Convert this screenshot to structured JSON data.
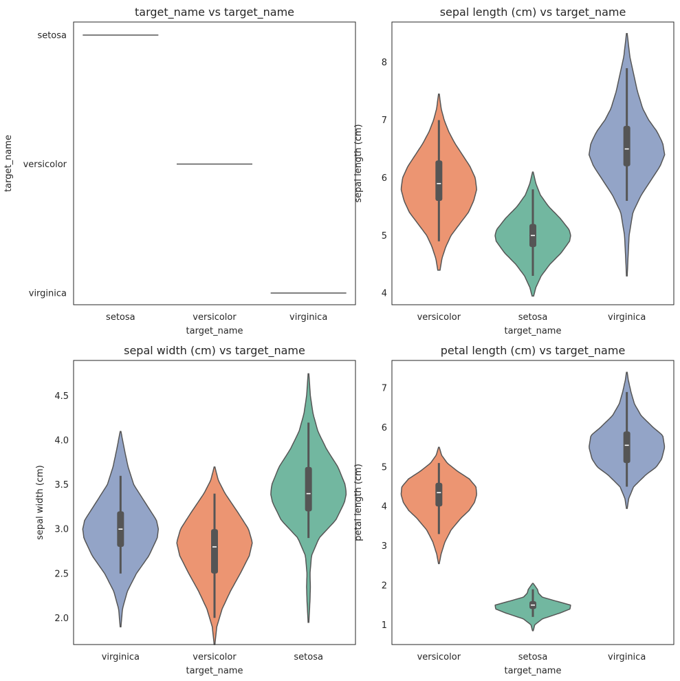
{
  "figure": {
    "colors": {
      "setosa": "#72b7a0",
      "versicolor": "#ec9572",
      "virginica": "#93a4c7",
      "edge": "#555555"
    }
  },
  "chart_data": [
    {
      "type": "line",
      "title": "target_name vs target_name",
      "xlabel": "target_name",
      "ylabel": "target_name",
      "categories": [
        "setosa",
        "versicolor",
        "virginica"
      ],
      "y_categories": [
        "setosa",
        "versicolor",
        "virginica"
      ],
      "points": [
        {
          "x": "setosa",
          "y": "setosa"
        },
        {
          "x": "versicolor",
          "y": "versicolor"
        },
        {
          "x": "virginica",
          "y": "virginica"
        }
      ]
    },
    {
      "type": "violin",
      "title": "sepal length (cm) vs target_name",
      "xlabel": "target_name",
      "ylabel": "sepal length (cm)",
      "ylim": [
        3.8,
        8.7
      ],
      "yticks": [
        4,
        5,
        6,
        7,
        8
      ],
      "categories": [
        "versicolor",
        "setosa",
        "virginica"
      ],
      "series": [
        {
          "name": "versicolor",
          "min": 4.9,
          "q1": 5.6,
          "median": 5.9,
          "q3": 6.3,
          "max": 7.0,
          "kde_min": 4.4,
          "kde_max": 7.45,
          "density": [
            [
              4.4,
              0.03
            ],
            [
              4.6,
              0.08
            ],
            [
              4.8,
              0.18
            ],
            [
              5.0,
              0.32
            ],
            [
              5.2,
              0.55
            ],
            [
              5.4,
              0.78
            ],
            [
              5.6,
              0.92
            ],
            [
              5.8,
              1.0
            ],
            [
              6.0,
              0.96
            ],
            [
              6.2,
              0.82
            ],
            [
              6.4,
              0.62
            ],
            [
              6.6,
              0.42
            ],
            [
              6.8,
              0.26
            ],
            [
              7.0,
              0.14
            ],
            [
              7.2,
              0.06
            ],
            [
              7.45,
              0.01
            ]
          ]
        },
        {
          "name": "setosa",
          "min": 4.3,
          "q1": 4.8,
          "median": 5.0,
          "q3": 5.2,
          "max": 5.8,
          "kde_min": 3.95,
          "kde_max": 6.1,
          "density": [
            [
              3.95,
              0.02
            ],
            [
              4.1,
              0.08
            ],
            [
              4.3,
              0.22
            ],
            [
              4.5,
              0.45
            ],
            [
              4.7,
              0.75
            ],
            [
              4.9,
              0.97
            ],
            [
              5.0,
              1.0
            ],
            [
              5.1,
              0.96
            ],
            [
              5.3,
              0.72
            ],
            [
              5.5,
              0.42
            ],
            [
              5.7,
              0.2
            ],
            [
              5.9,
              0.08
            ],
            [
              6.1,
              0.01
            ]
          ]
        },
        {
          "name": "virginica",
          "min": 5.6,
          "q1": 6.2,
          "median": 6.5,
          "q3": 6.9,
          "max": 7.9,
          "kde_min": 4.3,
          "kde_max": 8.5,
          "density": [
            [
              4.3,
              0.01
            ],
            [
              4.6,
              0.03
            ],
            [
              5.0,
              0.06
            ],
            [
              5.4,
              0.16
            ],
            [
              5.7,
              0.38
            ],
            [
              6.0,
              0.68
            ],
            [
              6.2,
              0.88
            ],
            [
              6.4,
              1.0
            ],
            [
              6.6,
              0.95
            ],
            [
              6.8,
              0.8
            ],
            [
              7.0,
              0.58
            ],
            [
              7.2,
              0.42
            ],
            [
              7.5,
              0.28
            ],
            [
              7.8,
              0.18
            ],
            [
              8.1,
              0.08
            ],
            [
              8.5,
              0.01
            ]
          ]
        }
      ]
    },
    {
      "type": "violin",
      "title": "sepal width (cm) vs target_name",
      "xlabel": "target_name",
      "ylabel": "sepal width (cm)",
      "ylim": [
        1.7,
        4.9
      ],
      "yticks": [
        "2.0",
        "2.5",
        "3.0",
        "3.5",
        "4.0",
        "4.5"
      ],
      "categories": [
        "virginica",
        "versicolor",
        "setosa"
      ],
      "series": [
        {
          "name": "virginica",
          "min": 2.5,
          "q1": 2.8,
          "median": 3.0,
          "q3": 3.2,
          "max": 3.6,
          "kde_min": 1.9,
          "kde_max": 4.1,
          "density": [
            [
              1.9,
              0.01
            ],
            [
              2.1,
              0.05
            ],
            [
              2.3,
              0.18
            ],
            [
              2.5,
              0.42
            ],
            [
              2.7,
              0.75
            ],
            [
              2.9,
              0.97
            ],
            [
              3.0,
              1.0
            ],
            [
              3.1,
              0.95
            ],
            [
              3.3,
              0.65
            ],
            [
              3.5,
              0.35
            ],
            [
              3.7,
              0.2
            ],
            [
              3.9,
              0.1
            ],
            [
              4.1,
              0.01
            ]
          ]
        },
        {
          "name": "versicolor",
          "min": 2.0,
          "q1": 2.5,
          "median": 2.8,
          "q3": 3.0,
          "max": 3.4,
          "kde_min": 1.7,
          "kde_max": 3.7,
          "density": [
            [
              1.7,
              0.01
            ],
            [
              1.9,
              0.06
            ],
            [
              2.1,
              0.2
            ],
            [
              2.3,
              0.42
            ],
            [
              2.5,
              0.68
            ],
            [
              2.7,
              0.92
            ],
            [
              2.85,
              1.0
            ],
            [
              3.0,
              0.9
            ],
            [
              3.2,
              0.6
            ],
            [
              3.4,
              0.28
            ],
            [
              3.55,
              0.1
            ],
            [
              3.7,
              0.01
            ]
          ]
        },
        {
          "name": "setosa",
          "min": 2.9,
          "q1": 3.2,
          "median": 3.4,
          "q3": 3.7,
          "max": 4.2,
          "kde_min": 1.95,
          "kde_max": 4.75,
          "density": [
            [
              1.95,
              0.01
            ],
            [
              2.2,
              0.04
            ],
            [
              2.35,
              0.05
            ],
            [
              2.5,
              0.04
            ],
            [
              2.7,
              0.08
            ],
            [
              2.9,
              0.28
            ],
            [
              3.1,
              0.72
            ],
            [
              3.3,
              0.95
            ],
            [
              3.4,
              1.0
            ],
            [
              3.5,
              0.97
            ],
            [
              3.7,
              0.78
            ],
            [
              3.9,
              0.48
            ],
            [
              4.1,
              0.25
            ],
            [
              4.3,
              0.12
            ],
            [
              4.5,
              0.05
            ],
            [
              4.75,
              0.01
            ]
          ]
        }
      ]
    },
    {
      "type": "violin",
      "title": "petal length (cm) vs target_name",
      "xlabel": "target_name",
      "ylabel": "petal length (cm)",
      "ylim": [
        0.5,
        7.7
      ],
      "yticks": [
        1,
        2,
        3,
        4,
        5,
        6,
        7
      ],
      "categories": [
        "versicolor",
        "setosa",
        "virginica"
      ],
      "series": [
        {
          "name": "versicolor",
          "min": 3.3,
          "q1": 4.0,
          "median": 4.35,
          "q3": 4.6,
          "max": 5.1,
          "kde_min": 2.55,
          "kde_max": 5.5,
          "density": [
            [
              2.55,
              0.01
            ],
            [
              2.8,
              0.06
            ],
            [
              3.1,
              0.16
            ],
            [
              3.4,
              0.32
            ],
            [
              3.7,
              0.58
            ],
            [
              3.9,
              0.8
            ],
            [
              4.1,
              0.94
            ],
            [
              4.3,
              1.0
            ],
            [
              4.5,
              0.98
            ],
            [
              4.7,
              0.8
            ],
            [
              4.9,
              0.48
            ],
            [
              5.1,
              0.22
            ],
            [
              5.3,
              0.07
            ],
            [
              5.5,
              0.01
            ]
          ]
        },
        {
          "name": "setosa",
          "min": 1.2,
          "q1": 1.4,
          "median": 1.5,
          "q3": 1.6,
          "max": 1.9,
          "kde_min": 0.85,
          "kde_max": 2.05,
          "density": [
            [
              0.85,
              0.01
            ],
            [
              1.0,
              0.05
            ],
            [
              1.15,
              0.25
            ],
            [
              1.3,
              0.72
            ],
            [
              1.4,
              0.98
            ],
            [
              1.5,
              1.0
            ],
            [
              1.6,
              0.62
            ],
            [
              1.7,
              0.25
            ],
            [
              1.8,
              0.15
            ],
            [
              1.9,
              0.12
            ],
            [
              2.05,
              0.01
            ]
          ]
        },
        {
          "name": "virginica",
          "min": 4.5,
          "q1": 5.1,
          "median": 5.55,
          "q3": 5.9,
          "max": 6.9,
          "kde_min": 3.95,
          "kde_max": 7.4,
          "density": [
            [
              3.95,
              0.01
            ],
            [
              4.2,
              0.05
            ],
            [
              4.5,
              0.18
            ],
            [
              4.8,
              0.5
            ],
            [
              5.0,
              0.78
            ],
            [
              5.2,
              0.92
            ],
            [
              5.5,
              1.0
            ],
            [
              5.8,
              0.95
            ],
            [
              6.0,
              0.7
            ],
            [
              6.3,
              0.38
            ],
            [
              6.6,
              0.2
            ],
            [
              6.9,
              0.11
            ],
            [
              7.2,
              0.04
            ],
            [
              7.4,
              0.01
            ]
          ]
        }
      ]
    }
  ]
}
